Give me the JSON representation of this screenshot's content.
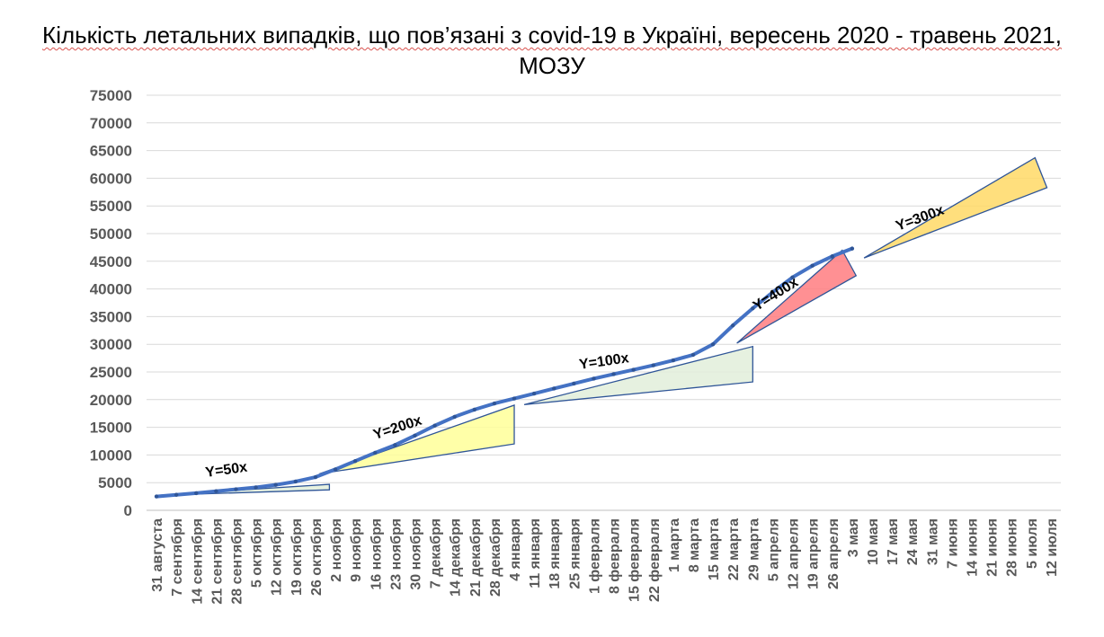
{
  "chart_data": {
    "type": "line",
    "title_line1": "Кількість летальних випадків, що пов’язані з covid-19 в Україні, вересень 2020 - травень 2021,",
    "title_line2": "МОЗУ",
    "ylim": [
      0,
      75000
    ],
    "yticks": [
      0,
      5000,
      10000,
      15000,
      20000,
      25000,
      30000,
      35000,
      40000,
      45000,
      50000,
      55000,
      60000,
      65000,
      70000,
      75000
    ],
    "grid": true,
    "x_categories": [
      "31 августа",
      "7 сентября",
      "14 сентября",
      "21 сентября",
      "28 сентября",
      "5 октября",
      "12 октября",
      "19 октября",
      "26 октября",
      "2 ноября",
      "9 ноября",
      "16 ноября",
      "23 ноября",
      "30 ноября",
      "7 декабря",
      "14 декабря",
      "21 декабря",
      "28 декабря",
      "4 января",
      "11 января",
      "18 января",
      "25 января",
      "1 февраля",
      "8 февраля",
      "15 февраля",
      "22 февраля",
      "1 марта",
      "8 марта",
      "15 марта",
      "22 марта",
      "29 марта",
      "5 апреля",
      "12 апреля",
      "19 апреля",
      "26 апреля",
      "3 мая",
      "10 мая",
      "17 мая",
      "24 мая",
      "31 мая",
      "7 июня",
      "14 июня",
      "21 июня",
      "28 июня",
      "5 июля",
      "12 июля"
    ],
    "series": [
      {
        "color": "#4472c4",
        "values": [
          2500,
          2800,
          3100,
          3450,
          3800,
          4150,
          4600,
          5200,
          6000,
          7400,
          8900,
          10400,
          11800,
          13500,
          15300,
          16900,
          18200,
          19300,
          20200,
          21100,
          22000,
          22900,
          23800,
          24600,
          25400,
          26200,
          27100,
          28100,
          30000,
          33400,
          36500,
          39400,
          42100,
          44200,
          45900,
          47300
        ]
      }
    ],
    "annotations": [
      {
        "label": "Y=50x",
        "color": "#e2efda",
        "apex": [
          0,
          2700
        ],
        "base": [
          [
            8.7,
            4700
          ],
          [
            8.7,
            3700
          ]
        ],
        "label_pos": [
          2.5,
          6000
        ],
        "angle": -8
      },
      {
        "label": "Y=200x",
        "color": "#ffff99",
        "apex": [
          8.2,
          6600
        ],
        "base": [
          [
            18,
            19000
          ],
          [
            18,
            12000
          ]
        ],
        "label_pos": [
          11.0,
          12800
        ],
        "angle": -18
      },
      {
        "label": "Y=100x",
        "color": "#e2efda",
        "apex": [
          18.5,
          19100
        ],
        "base": [
          [
            30,
            29600
          ],
          [
            30,
            23200
          ]
        ],
        "label_pos": [
          21.3,
          25500
        ],
        "angle": -8
      },
      {
        "label": "Y=400x",
        "color": "#ff7c80",
        "apex": [
          29.2,
          30200
        ],
        "base": [
          [
            34.5,
            47000
          ],
          [
            35.2,
            42400
          ]
        ],
        "label_pos": [
          30.2,
          36000
        ],
        "angle": -32
      },
      {
        "label": "Y=300x",
        "color": "#ffd966",
        "apex": [
          35.6,
          45600
        ],
        "base": [
          [
            44.2,
            63700
          ],
          [
            44.8,
            58300
          ]
        ],
        "label_pos": [
          37.3,
          50500
        ],
        "angle": -20
      }
    ]
  }
}
